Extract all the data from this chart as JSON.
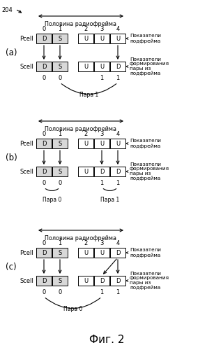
{
  "half_radioframe": "Половина радиофрейма",
  "pokazateli_podfreima": "Показатели\nподфрейма",
  "pokazateli_formirovaniya": "Показатели\nформирования\nпары из\nподфрейма",
  "pcell": "Pcell",
  "scell": "Scell",
  "para0": "Пара 0",
  "para1": "Пара 1",
  "label_204": "204",
  "fig_label": "Фиг. 2",
  "bg": "#ffffff",
  "box_gray": "#d8d8d8",
  "panel_a": {
    "label": "(a)",
    "pcell": [
      "D",
      "S",
      "U",
      "U",
      "U"
    ],
    "scell": [
      "D",
      "S",
      "U",
      "U",
      "D"
    ],
    "arrows": [
      [
        0,
        0
      ],
      [
        1,
        1
      ],
      [
        4,
        4
      ]
    ],
    "pairs": [
      [
        1,
        4,
        "Пара 1"
      ]
    ],
    "indicators": [
      [
        0,
        "0"
      ],
      [
        1,
        "0"
      ],
      [
        3,
        "1"
      ],
      [
        4,
        "1"
      ]
    ]
  },
  "panel_b": {
    "label": "(b)",
    "pcell": [
      "D",
      "S",
      "U",
      "U",
      "U"
    ],
    "scell": [
      "D",
      "S",
      "U",
      "D",
      "D"
    ],
    "arrows": [
      [
        0,
        0
      ],
      [
        1,
        1
      ],
      [
        3,
        3
      ],
      [
        4,
        4
      ]
    ],
    "pairs": [
      [
        0,
        1,
        "Пара 0"
      ],
      [
        3,
        4,
        "Пара 1"
      ]
    ],
    "indicators": [
      [
        0,
        "0"
      ],
      [
        1,
        "0"
      ],
      [
        3,
        "1"
      ],
      [
        4,
        "1"
      ]
    ]
  },
  "panel_c": {
    "label": "(c)",
    "pcell": [
      "D",
      "S",
      "U",
      "U",
      "D"
    ],
    "scell": [
      "D",
      "S",
      "U",
      "D",
      "D"
    ],
    "arrows": [
      [
        0,
        0
      ],
      [
        1,
        1
      ],
      [
        4,
        3
      ],
      [
        4,
        4
      ]
    ],
    "pairs": [
      [
        0,
        3,
        "Пара 0"
      ]
    ],
    "indicators": [
      [
        0,
        "0"
      ],
      [
        1,
        "0"
      ],
      [
        3,
        "1"
      ],
      [
        4,
        "1"
      ]
    ]
  }
}
